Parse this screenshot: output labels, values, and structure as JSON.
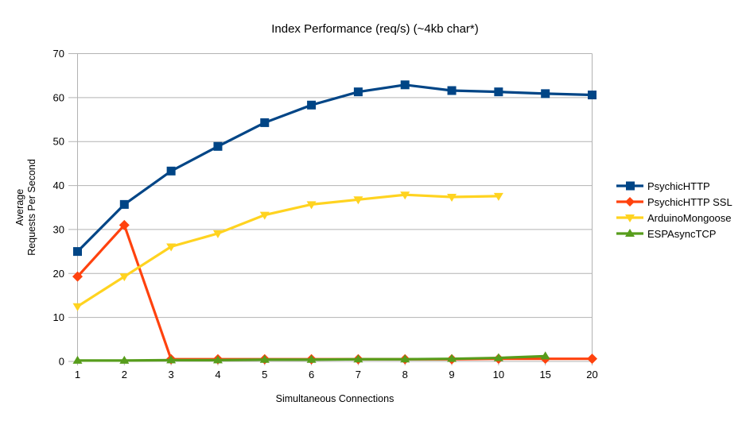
{
  "chart_data": {
    "type": "line",
    "title": "Index Performance (req/s) (~4kb char*)",
    "xlabel": "Simultaneous Connections",
    "ylabel": "Average Requests Per Second",
    "ylabel_lines": [
      "Average",
      "Requests Per Second"
    ],
    "categories": [
      "1",
      "2",
      "3",
      "4",
      "5",
      "6",
      "7",
      "8",
      "9",
      "10",
      "15",
      "20"
    ],
    "ylim": [
      0,
      70
    ],
    "yticks": [
      0,
      10,
      20,
      30,
      40,
      50,
      60,
      70
    ],
    "grid": "horizontal-only",
    "legend_position": "right",
    "series": [
      {
        "name": "PsychicHTTP",
        "color": "#004586",
        "marker": "square",
        "values": [
          25.0,
          35.7,
          43.3,
          48.9,
          54.3,
          58.3,
          61.3,
          62.9,
          61.6,
          61.3,
          60.9,
          60.6
        ]
      },
      {
        "name": "PsychicHTTP SSL",
        "color": "#FF420E",
        "marker": "diamond",
        "values": [
          19.3,
          31.0,
          0.5,
          0.5,
          0.5,
          0.5,
          0.5,
          0.5,
          0.5,
          0.6,
          0.6,
          0.6
        ]
      },
      {
        "name": "ArduinoMongoose",
        "color": "#FFD320",
        "marker": "triangle-down",
        "values": [
          12.5,
          19.3,
          26.1,
          29.1,
          33.3,
          35.7,
          36.8,
          37.9,
          37.4,
          37.6,
          null,
          null
        ]
      },
      {
        "name": "ESPAsyncTCP",
        "color": "#579D1C",
        "marker": "triangle-up",
        "values": [
          0.2,
          0.2,
          0.3,
          0.3,
          0.4,
          0.4,
          0.5,
          0.5,
          0.6,
          0.8,
          1.2,
          null
        ]
      }
    ]
  },
  "colors": {
    "background": "#ffffff",
    "grid": "#b3b3b3",
    "axis": "#b3b3b3",
    "text": "#000000"
  }
}
